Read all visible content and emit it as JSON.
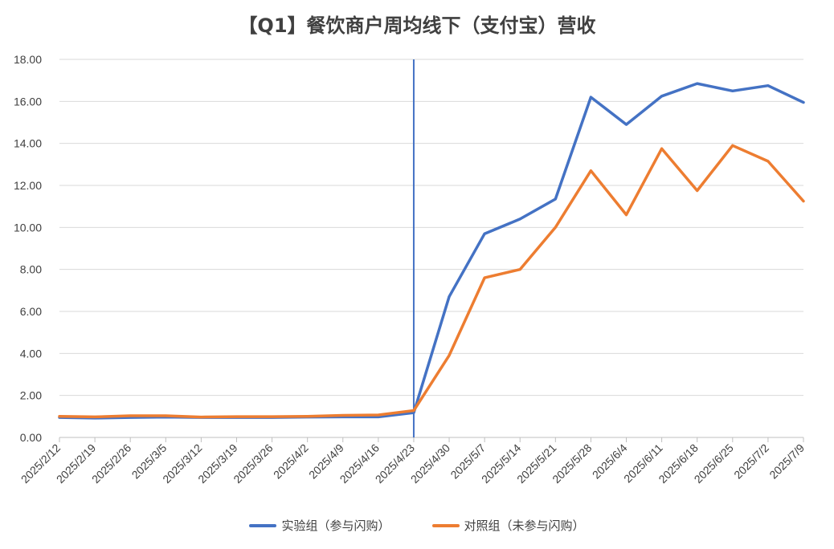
{
  "chart_data": {
    "type": "line",
    "title": "【Q1】餐饮商户周均线下（支付宝）营收",
    "x": [
      "2025/2/12",
      "2025/2/19",
      "2025/2/26",
      "2025/3/5",
      "2025/3/12",
      "2025/3/19",
      "2025/3/26",
      "2025/4/2",
      "2025/4/9",
      "2025/4/16",
      "2025/4/23",
      "2025/4/30",
      "2025/5/7",
      "2025/5/14",
      "2025/5/21",
      "2025/5/28",
      "2025/6/4",
      "2025/6/11",
      "2025/6/18",
      "2025/6/25",
      "2025/7/2",
      "2025/7/9"
    ],
    "ylim": [
      0,
      18
    ],
    "yticks": [
      "0.00",
      "2.00",
      "4.00",
      "6.00",
      "8.00",
      "10.00",
      "12.00",
      "14.00",
      "16.00",
      "18.00"
    ],
    "grid": true,
    "legend_position": "bottom",
    "vline_at": "2025/4/23",
    "series": [
      {
        "name": "实验组（参与闪购）",
        "color": "#4472C4",
        "values": [
          0.95,
          0.92,
          0.95,
          0.97,
          0.95,
          0.95,
          0.95,
          0.97,
          0.98,
          0.98,
          1.18,
          6.7,
          9.7,
          10.4,
          11.35,
          16.2,
          14.9,
          16.25,
          16.85,
          16.5,
          16.75,
          15.95
        ]
      },
      {
        "name": "对照组（未参与闪购）",
        "color": "#ED7D31",
        "values": [
          1.0,
          0.98,
          1.03,
          1.03,
          0.97,
          0.99,
          0.99,
          1.0,
          1.05,
          1.07,
          1.28,
          3.9,
          7.6,
          8.0,
          10.0,
          12.7,
          10.6,
          13.75,
          11.75,
          13.9,
          13.15,
          11.25
        ]
      }
    ]
  }
}
